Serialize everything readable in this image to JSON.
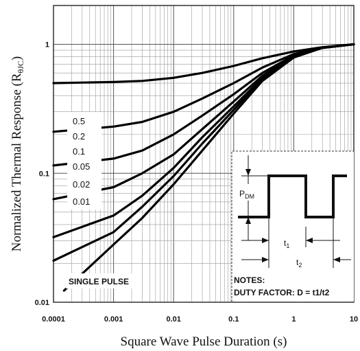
{
  "chart_data": {
    "type": "line",
    "xlabel": "Square Wave Pulse Duration (s)",
    "ylabel_main": "Normalized Thermal Response (R",
    "ylabel_sub": "θJC",
    "ylabel_close": ")",
    "x_scale": "log",
    "y_scale": "log",
    "xlim": [
      0.0001,
      10
    ],
    "ylim": [
      0.01,
      2
    ],
    "x_ticks": [
      0.0001,
      0.001,
      0.01,
      0.1,
      1,
      10
    ],
    "x_tick_labels": [
      "0.0001",
      "0.001",
      "0.01",
      "0.1",
      "1",
      "10"
    ],
    "y_ticks": [
      0.01,
      0.1,
      1
    ],
    "y_tick_labels": [
      "0.01",
      "0.1",
      "1"
    ],
    "grid": true,
    "legend": [
      "0.5",
      "0.2",
      "0.1",
      "0.05",
      "0.02",
      "0.01"
    ],
    "single_pulse_label": "SINGLE PULSE",
    "series": [
      {
        "name": "0.5",
        "x": [
          0.0001,
          0.001,
          0.003,
          0.01,
          0.03,
          0.1,
          0.3,
          1,
          3,
          10
        ],
        "y": [
          0.5,
          0.51,
          0.52,
          0.55,
          0.6,
          0.68,
          0.78,
          0.88,
          0.95,
          1.0
        ]
      },
      {
        "name": "0.2",
        "x": [
          0.0001,
          0.001,
          0.003,
          0.01,
          0.03,
          0.1,
          0.3,
          1,
          3,
          10
        ],
        "y": [
          0.21,
          0.23,
          0.25,
          0.3,
          0.38,
          0.5,
          0.66,
          0.84,
          0.94,
          1.0
        ]
      },
      {
        "name": "0.1",
        "x": [
          0.0001,
          0.001,
          0.003,
          0.01,
          0.03,
          0.1,
          0.3,
          1,
          3,
          10
        ],
        "y": [
          0.115,
          0.13,
          0.15,
          0.2,
          0.28,
          0.41,
          0.6,
          0.82,
          0.94,
          1.0
        ]
      },
      {
        "name": "0.05",
        "x": [
          0.0001,
          0.001,
          0.003,
          0.01,
          0.03,
          0.1,
          0.3,
          1,
          3,
          10
        ],
        "y": [
          0.063,
          0.078,
          0.1,
          0.14,
          0.22,
          0.36,
          0.57,
          0.81,
          0.94,
          1.0
        ]
      },
      {
        "name": "0.02",
        "x": [
          0.0001,
          0.001,
          0.003,
          0.01,
          0.03,
          0.1,
          0.3,
          1,
          3,
          10
        ],
        "y": [
          0.032,
          0.047,
          0.067,
          0.11,
          0.19,
          0.33,
          0.55,
          0.8,
          0.94,
          1.0
        ]
      },
      {
        "name": "0.01",
        "x": [
          0.0001,
          0.001,
          0.003,
          0.01,
          0.03,
          0.1,
          0.3,
          1,
          3,
          10
        ],
        "y": [
          0.021,
          0.035,
          0.055,
          0.095,
          0.17,
          0.31,
          0.54,
          0.8,
          0.94,
          1.0
        ]
      },
      {
        "name": "SINGLE PULSE",
        "x": [
          0.00015,
          0.001,
          0.003,
          0.01,
          0.03,
          0.1,
          0.3,
          1,
          3,
          10
        ],
        "y": [
          0.0123,
          0.028,
          0.045,
          0.082,
          0.15,
          0.29,
          0.52,
          0.79,
          0.94,
          1.0
        ]
      }
    ]
  },
  "inset": {
    "pdm_label": "P",
    "pdm_sub": "DM",
    "t1_label": "t",
    "t1_sub": "1",
    "t2_label": "t",
    "t2_sub": "2",
    "notes_title": "NOTES:",
    "notes_text": "DUTY FACTOR: D = t1/t2"
  }
}
